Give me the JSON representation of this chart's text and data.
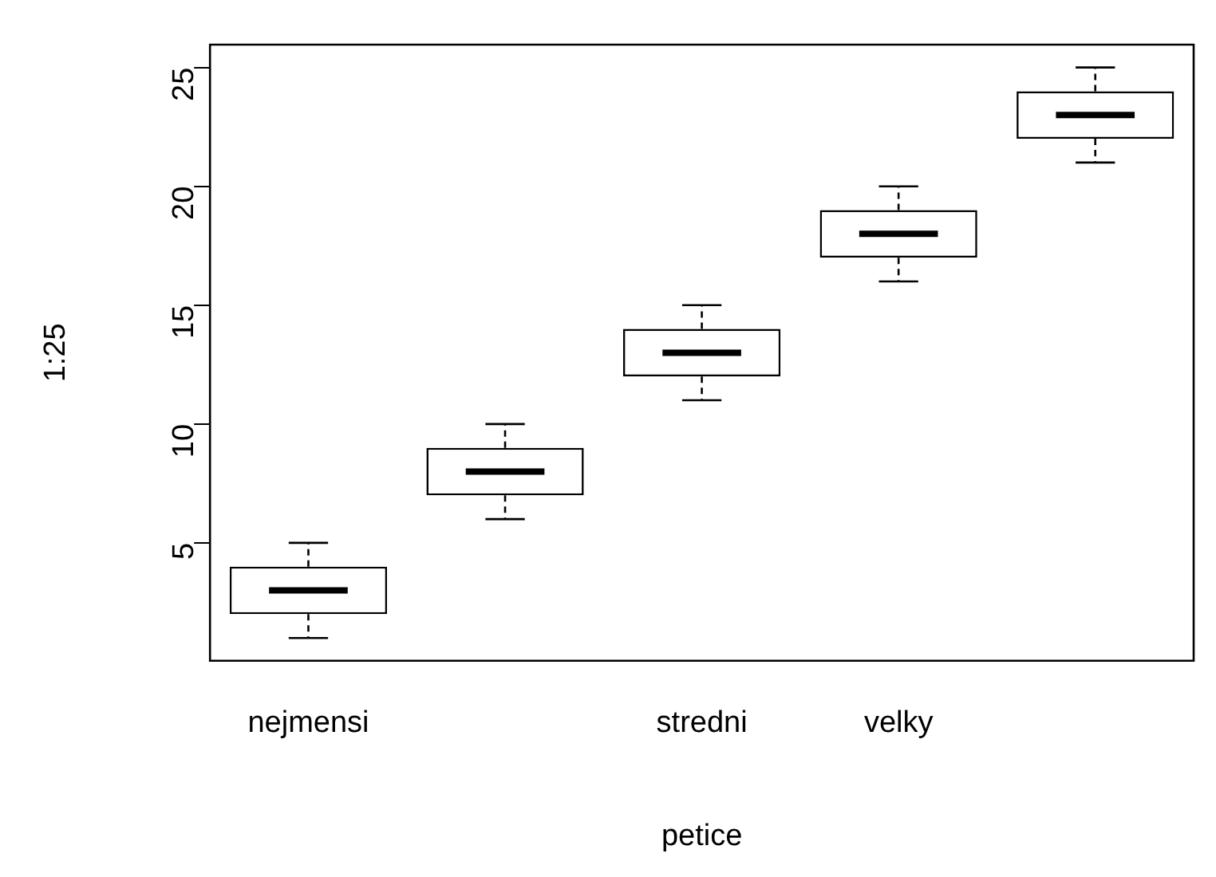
{
  "chart_data": {
    "type": "box",
    "xlabel": "petice",
    "ylabel": "1:25",
    "categories": [
      "nejmensi",
      null,
      "stredni",
      "velky",
      null
    ],
    "boxes": [
      {
        "low": 1,
        "q1": 2,
        "median": 3,
        "q3": 4,
        "high": 5
      },
      {
        "low": 6,
        "q1": 7,
        "median": 8,
        "q3": 9,
        "high": 10
      },
      {
        "low": 11,
        "q1": 12,
        "median": 13,
        "q3": 14,
        "high": 15
      },
      {
        "low": 16,
        "q1": 17,
        "median": 18,
        "q3": 19,
        "high": 20
      },
      {
        "low": 21,
        "q1": 22,
        "median": 23,
        "q3": 24,
        "high": 25
      }
    ],
    "ylim": [
      0.04,
      25.96
    ],
    "yticks": [
      5,
      10,
      15,
      20,
      25
    ],
    "grid": false,
    "legend": false
  }
}
